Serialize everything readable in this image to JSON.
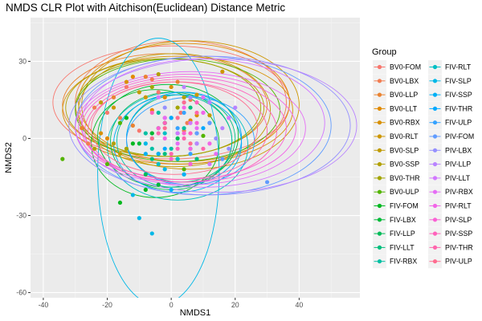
{
  "chart_data": {
    "type": "scatter",
    "title": "NMDS CLR Plot with Aitchison(Euclidean) Distance Metric",
    "xlabel": "NMDS1",
    "ylabel": "NMDS2",
    "xlim": [
      -44,
      59
    ],
    "ylim": [
      -62,
      47
    ],
    "xticks": [
      -40,
      -20,
      0,
      20,
      40
    ],
    "yticks": [
      -60,
      -30,
      0,
      30
    ],
    "grid": true,
    "legend_title": "Group",
    "legend_position": "right",
    "ellipses": true,
    "series": [
      {
        "name": "BV0-FOM",
        "color": "#F8766D",
        "ellipse": {
          "cx": 0,
          "cy": 14,
          "rx": 37,
          "ry": 22
        },
        "x": [
          -20,
          -14,
          -2,
          -10,
          -4,
          3
        ],
        "y": [
          10,
          20,
          8,
          3,
          18,
          10
        ]
      },
      {
        "name": "BV0-LBX",
        "color": "#F27D52",
        "ellipse": {
          "cx": 3,
          "cy": 14,
          "rx": 33,
          "ry": 24
        },
        "x": [
          -24,
          -6,
          4,
          -16,
          6,
          -26,
          5
        ],
        "y": [
          12,
          23,
          3,
          8,
          15,
          -2,
          6
        ]
      },
      {
        "name": "BV0-LLP",
        "color": "#EA8331",
        "ellipse": {
          "cx": -2,
          "cy": 13,
          "rx": 32,
          "ry": 20
        },
        "x": [
          -18,
          2,
          -12,
          -8,
          -28
        ],
        "y": [
          16,
          22,
          5,
          24,
          4
        ]
      },
      {
        "name": "BV0-LLT",
        "color": "#E18A00",
        "ellipse": {
          "cx": 4,
          "cy": 14,
          "rx": 33,
          "ry": 23
        },
        "x": [
          -12,
          -2,
          6,
          -6,
          -20
        ],
        "y": [
          24,
          16,
          7,
          11,
          0
        ]
      },
      {
        "name": "BV0-RBX",
        "color": "#D89000",
        "ellipse": {
          "cx": 2,
          "cy": 11,
          "rx": 36,
          "ry": 21
        },
        "x": [
          -14,
          0,
          8,
          -22,
          -6
        ],
        "y": [
          22,
          20,
          9,
          2,
          2
        ]
      },
      {
        "name": "BV0-RLT",
        "color": "#CD9600",
        "ellipse": {
          "cx": 6,
          "cy": 13,
          "rx": 34,
          "ry": 25
        },
        "x": [
          -8,
          8,
          16,
          -18
        ],
        "y": [
          16,
          17,
          26,
          12
        ]
      },
      {
        "name": "BV0-SLP",
        "color": "#C09B00",
        "ellipse": {
          "cx": 1,
          "cy": 11,
          "rx": 30,
          "ry": 22
        },
        "x": [
          -22,
          -16,
          12,
          -10
        ],
        "y": [
          14,
          -6,
          9,
          18
        ]
      },
      {
        "name": "BV0-SSP",
        "color": "#B2A000",
        "ellipse": {
          "cx": -2,
          "cy": 12,
          "rx": 31,
          "ry": 19
        },
        "x": [
          -18,
          -4,
          4,
          -24
        ],
        "y": [
          -2,
          25,
          16,
          -4
        ]
      },
      {
        "name": "BV0-THR",
        "color": "#A3A500",
        "ellipse": {
          "cx": -1,
          "cy": 12,
          "rx": 29,
          "ry": 19
        },
        "x": [
          -14,
          2,
          -6
        ],
        "y": [
          -4,
          12,
          20
        ]
      },
      {
        "name": "BV0-ULP",
        "color": "#53B400",
        "ellipse": {
          "cx": 2,
          "cy": 11,
          "rx": 32,
          "ry": 20
        },
        "x": [
          -34,
          -16,
          -20,
          4,
          10
        ],
        "y": [
          -8,
          6,
          -10,
          -12,
          1
        ]
      },
      {
        "name": "FIV-FOM",
        "color": "#00B81F",
        "ellipse": {
          "cx": -5,
          "cy": -2,
          "rx": 20,
          "ry": 21
        },
        "x": [
          -16,
          -8,
          -12,
          -4,
          -14
        ],
        "y": [
          -25,
          -20,
          -2,
          -6,
          8
        ]
      },
      {
        "name": "FIV-LBX",
        "color": "#00BA38",
        "ellipse": {
          "cx": -1,
          "cy": 1,
          "rx": 22,
          "ry": 20
        },
        "x": [
          -10,
          -6,
          2,
          -2,
          -4
        ],
        "y": [
          -2,
          2,
          -8,
          6,
          -18
        ]
      },
      {
        "name": "FIV-LLP",
        "color": "#00BC59",
        "ellipse": {
          "cx": 0,
          "cy": -1,
          "rx": 19,
          "ry": 19
        },
        "x": [
          -8,
          -4,
          2,
          6,
          -2
        ],
        "y": [
          -14,
          4,
          0,
          -4,
          6
        ]
      },
      {
        "name": "FIV-LLT",
        "color": "#00BF7D",
        "ellipse": {
          "cx": 3,
          "cy": 0,
          "rx": 17,
          "ry": 17
        },
        "x": [
          -6,
          -2,
          0,
          6,
          8
        ],
        "y": [
          -8,
          -6,
          8,
          12,
          -8
        ]
      },
      {
        "name": "FIV-RBX",
        "color": "#00C0A3",
        "ellipse": {
          "cx": 1,
          "cy": -1,
          "rx": 18,
          "ry": 18
        },
        "x": [
          -8,
          -6,
          0,
          -4,
          4
        ],
        "y": [
          2,
          -4,
          -4,
          10,
          4
        ]
      },
      {
        "name": "FIV-RLT",
        "color": "#00BFC4",
        "ellipse": {
          "cx": 2,
          "cy": -3,
          "rx": 22,
          "ry": 21
        },
        "x": [
          -4,
          2,
          -2,
          4,
          -6
        ],
        "y": [
          -10,
          -8,
          2,
          -14,
          0
        ]
      },
      {
        "name": "FIV-SLP",
        "color": "#00B8E7",
        "ellipse": {
          "cx": -4,
          "cy": -13,
          "rx": 19,
          "ry": 52
        },
        "x": [
          -10,
          -6,
          -2,
          -12,
          -8
        ],
        "y": [
          -31,
          -37,
          -12,
          -22,
          -2
        ]
      },
      {
        "name": "FIV-SSP",
        "color": "#00B0F6",
        "ellipse": {
          "cx": 2,
          "cy": -2,
          "rx": 20,
          "ry": 19
        },
        "x": [
          -4,
          0,
          4,
          -8,
          8
        ],
        "y": [
          -6,
          -20,
          -14,
          -6,
          2
        ]
      },
      {
        "name": "FIV-THR",
        "color": "#00A9FF",
        "ellipse": {
          "cx": 4,
          "cy": 0,
          "rx": 18,
          "ry": 18
        },
        "x": [
          -2,
          2,
          6,
          10,
          0
        ],
        "y": [
          -4,
          2,
          -10,
          4,
          8
        ]
      },
      {
        "name": "FIV-ULP",
        "color": "#35A2FF",
        "ellipse": {
          "cx": 6,
          "cy": -1,
          "rx": 20,
          "ry": 17
        },
        "x": [
          2,
          6,
          8,
          12,
          4
        ],
        "y": [
          4,
          -6,
          -2,
          6,
          10
        ]
      },
      {
        "name": "PIV-FOM",
        "color": "#619CFF",
        "ellipse": {
          "cx": 10,
          "cy": 5,
          "rx": 40,
          "ry": 27
        },
        "x": [
          8,
          12,
          16,
          30,
          4
        ],
        "y": [
          2,
          6,
          -8,
          -17,
          14
        ]
      },
      {
        "name": "PIV-LBX",
        "color": "#9590FF",
        "ellipse": {
          "cx": 12,
          "cy": 5,
          "rx": 44,
          "ry": 27
        },
        "x": [
          10,
          14,
          -2,
          6,
          18
        ],
        "y": [
          10,
          0,
          12,
          16,
          -4
        ]
      },
      {
        "name": "PIV-LLP",
        "color": "#B983FF",
        "ellipse": {
          "cx": 14,
          "cy": 5,
          "rx": 44,
          "ry": 26
        },
        "x": [
          8,
          16,
          20,
          4,
          12
        ],
        "y": [
          -2,
          4,
          12,
          20,
          14
        ]
      },
      {
        "name": "PIV-LLT",
        "color": "#D277FF",
        "ellipse": {
          "cx": 10,
          "cy": 6,
          "rx": 38,
          "ry": 25
        },
        "x": [
          6,
          12,
          -4,
          2,
          18
        ],
        "y": [
          6,
          -10,
          16,
          2,
          8
        ]
      },
      {
        "name": "PIV-RBX",
        "color": "#E56DF5",
        "ellipse": {
          "cx": 6,
          "cy": 4,
          "rx": 36,
          "ry": 22
        },
        "x": [
          2,
          8,
          14,
          -2,
          10
        ],
        "y": [
          -2,
          4,
          -6,
          8,
          16
        ]
      },
      {
        "name": "PIV-RLT",
        "color": "#F265E7",
        "ellipse": {
          "cx": 5,
          "cy": 4,
          "rx": 34,
          "ry": 21
        },
        "x": [
          -2,
          6,
          10,
          4,
          12
        ],
        "y": [
          0,
          -4,
          10,
          12,
          -2
        ]
      },
      {
        "name": "PIV-SLP",
        "color": "#FA62D4",
        "ellipse": {
          "cx": 4,
          "cy": 4,
          "rx": 32,
          "ry": 20
        },
        "x": [
          0,
          4,
          8,
          -4,
          6
        ],
        "y": [
          -8,
          2,
          6,
          4,
          -10
        ]
      },
      {
        "name": "PIV-SSP",
        "color": "#FF62BC",
        "ellipse": {
          "cx": 3,
          "cy": 3,
          "rx": 30,
          "ry": 20
        },
        "x": [
          -2,
          2,
          6,
          8,
          -6
        ],
        "y": [
          6,
          -4,
          2,
          14,
          10
        ]
      },
      {
        "name": "PIV-THR",
        "color": "#FF65AC",
        "ellipse": {
          "cx": 2,
          "cy": 3,
          "rx": 28,
          "ry": 19
        },
        "x": [
          0,
          4,
          -4,
          8,
          10
        ],
        "y": [
          -6,
          0,
          2,
          10,
          -4
        ]
      },
      {
        "name": "PIV-ULP",
        "color": "#FF6C90",
        "ellipse": {
          "cx": 1,
          "cy": 4,
          "rx": 26,
          "ry": 18
        },
        "x": [
          -2,
          2,
          6,
          -6,
          4
        ],
        "y": [
          4,
          8,
          -2,
          0,
          14
        ]
      }
    ]
  }
}
